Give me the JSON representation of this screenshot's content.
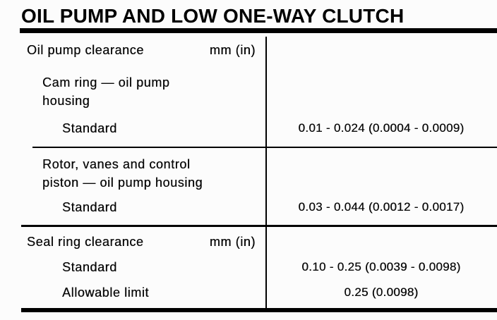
{
  "colors": {
    "ink": "#000000",
    "paper": "#fcfcfc"
  },
  "page_title": "OIL PUMP AND LOW ONE-WAY CLUTCH",
  "table": {
    "groups": [
      {
        "header": "Oil pump clearance",
        "unit": "mm (in)",
        "items": [
          {
            "name_lines": [
              "Cam ring — oil pump",
              "housing"
            ],
            "specs": [
              {
                "label": "Standard",
                "value": "0.01 - 0.024 (0.0004 - 0.0009)"
              }
            ]
          },
          {
            "name_lines": [
              "Rotor, vanes and control",
              "piston — oil pump housing"
            ],
            "specs": [
              {
                "label": "Standard",
                "value": "0.03 - 0.044 (0.0012 - 0.0017)"
              }
            ]
          }
        ]
      },
      {
        "header": "Seal ring clearance",
        "unit": "mm (in)",
        "specs": [
          {
            "label": "Standard",
            "value": "0.10 - 0.25 (0.0039 - 0.0098)"
          },
          {
            "label": "Allowable limit",
            "value": "0.25 (0.0098)"
          }
        ]
      }
    ]
  }
}
